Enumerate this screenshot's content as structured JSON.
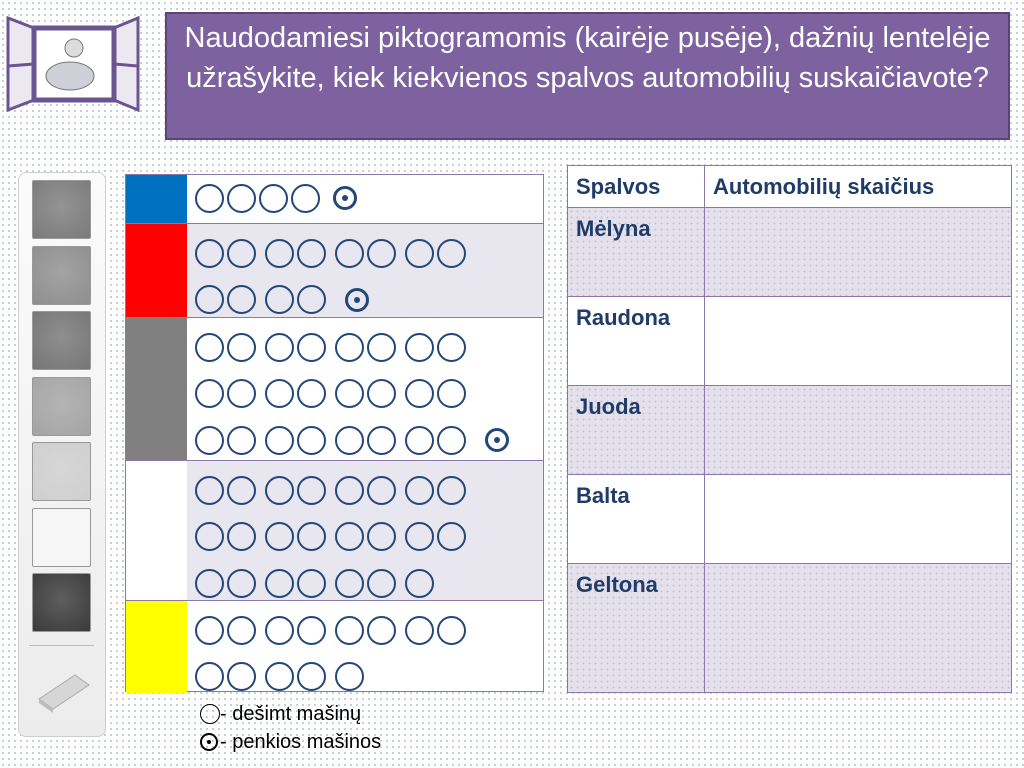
{
  "title": "Naudodamiesi piktogramomis (kairėje pusėje),  dažnių lentelėje   užrašykite, kiek kiekvienos spalvos automobilių suskaičiavote?",
  "toolbar": {
    "swatches": [
      "#7a7a7a",
      "#8e8e8e",
      "#757575",
      "#a4a4a4",
      "#cfcfcf",
      "#f6f6f6",
      "#3a3a3a"
    ],
    "eraser_icon": "eraser-icon"
  },
  "pictogram": {
    "rows": [
      {
        "color": "#0070c0",
        "full_icons": 4,
        "half_icon": true
      },
      {
        "color": "#ff0000",
        "full_icons": 12,
        "half_icon": true
      },
      {
        "color": "#808080",
        "full_icons": 24,
        "half_icon": true
      },
      {
        "color": "#ffffff",
        "full_icons": 23,
        "half_icon": false
      },
      {
        "color": "#ffff00",
        "full_icons": 13,
        "half_icon": false
      }
    ]
  },
  "legend": {
    "full": "- dešimt mašinų",
    "half": "- penkios mašinos"
  },
  "answer_table": {
    "headers": [
      "Spalvos",
      "Automobilių skaičius"
    ],
    "rows": [
      {
        "color": "Mėlyna",
        "count": ""
      },
      {
        "color": "Raudona",
        "count": ""
      },
      {
        "color": "Juoda",
        "count": ""
      },
      {
        "color": "Balta",
        "count": ""
      },
      {
        "color": "Geltona",
        "count": ""
      }
    ]
  }
}
